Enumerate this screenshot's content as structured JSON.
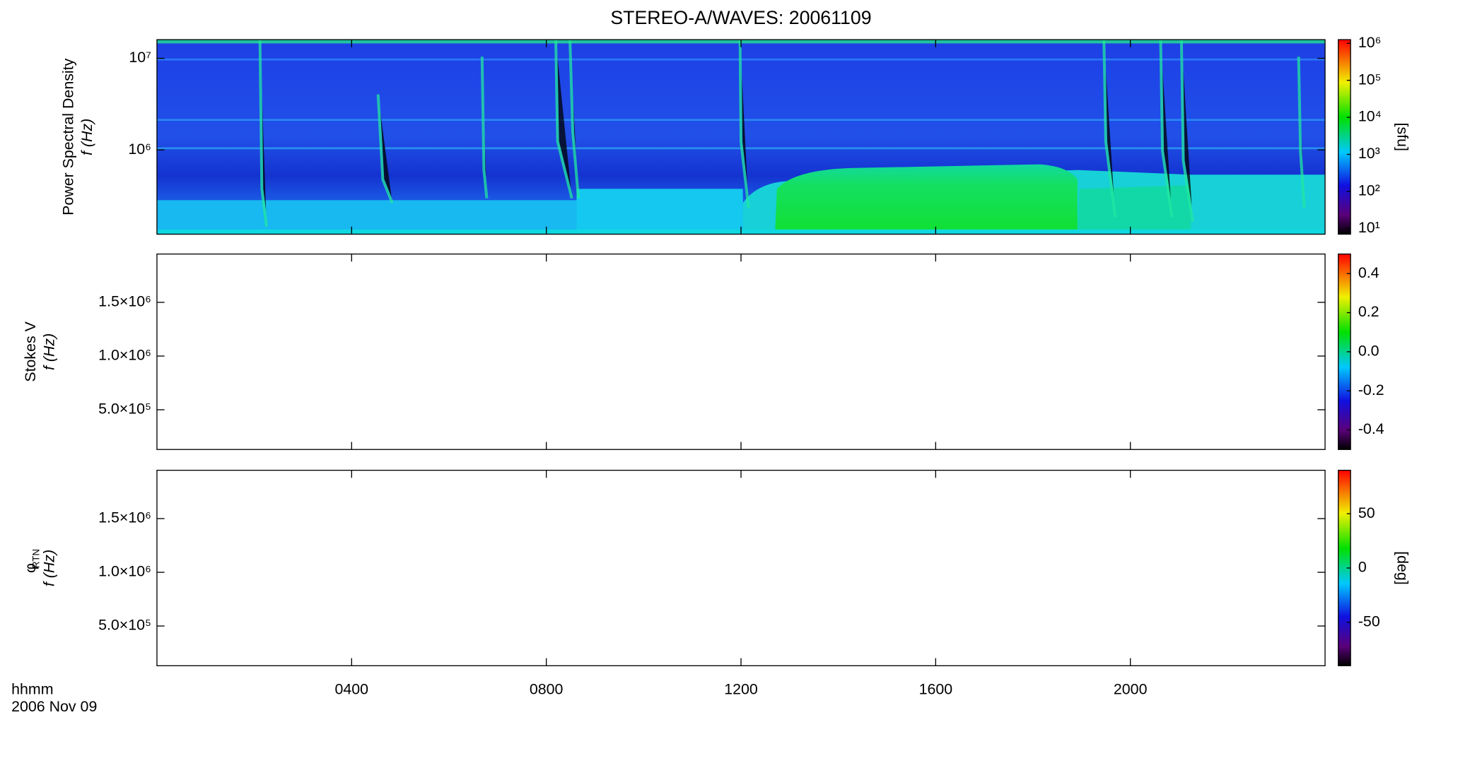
{
  "chart_data": [
    {
      "type": "heatmap",
      "title": "STEREO-A/WAVES: 20061109",
      "ylabel": [
        "Power Spectral Density",
        "f (Hz)"
      ],
      "yscale": "log",
      "ylim": [
        120000,
        16000000
      ],
      "yticks": [
        {
          "value": 1000000,
          "label": "10⁶"
        },
        {
          "value": 10000000,
          "label": "10⁷"
        }
      ],
      "xlim": [
        0,
        24
      ],
      "colorbar": {
        "label": "[sfu]",
        "scale": "log",
        "lim": [
          7,
          1250000
        ],
        "ticks": [
          {
            "value": 10,
            "label": "10¹"
          },
          {
            "value": 100,
            "label": "10²"
          },
          {
            "value": 1000,
            "label": "10³"
          },
          {
            "value": 10000,
            "label": "10⁴"
          },
          {
            "value": 100000,
            "label": "10⁵"
          },
          {
            "value": 1000000,
            "label": "10⁶"
          }
        ]
      }
    },
    {
      "type": "heatmap",
      "ylabel": [
        "Stokes V",
        "f (Hz)"
      ],
      "yscale": "linear",
      "ylim": [
        130000,
        1950000
      ],
      "yticks": [
        {
          "value": 500000,
          "label": "5.0×10⁵"
        },
        {
          "value": 1000000,
          "label": "1.0×10⁶"
        },
        {
          "value": 1500000,
          "label": "1.5×10⁶"
        }
      ],
      "xlim": [
        0,
        24
      ],
      "colorbar": {
        "scale": "linear",
        "lim": [
          -0.5,
          0.5
        ],
        "ticks": [
          -0.4,
          -0.2,
          {
            "value": 0,
            "label": "0.0"
          },
          0.2,
          0.4
        ]
      }
    },
    {
      "type": "heatmap",
      "ylabel": [
        "φ",
        "f (Hz)"
      ],
      "ylabel_subscript": "RTN",
      "yscale": "linear",
      "ylim": [
        130000,
        1950000
      ],
      "yticks": [
        {
          "value": 500000,
          "label": "5.0×10⁵"
        },
        {
          "value": 1000000,
          "label": "1.0×10⁶"
        },
        {
          "value": 1500000,
          "label": "1.5×10⁶"
        }
      ],
      "xlim": [
        0,
        24
      ],
      "xticks": [
        {
          "value": 4,
          "label": "0400"
        },
        {
          "value": 8,
          "label": "0800"
        },
        {
          "value": 12,
          "label": "1200"
        },
        {
          "value": 16,
          "label": "1600"
        },
        {
          "value": 20,
          "label": "2000"
        }
      ],
      "xlabel": [
        "hhmm",
        "2006 Nov 09"
      ],
      "colorbar": {
        "label": "[deg]",
        "scale": "linear",
        "lim": [
          -90,
          90
        ],
        "ticks": [
          -50,
          0,
          50
        ]
      }
    }
  ]
}
